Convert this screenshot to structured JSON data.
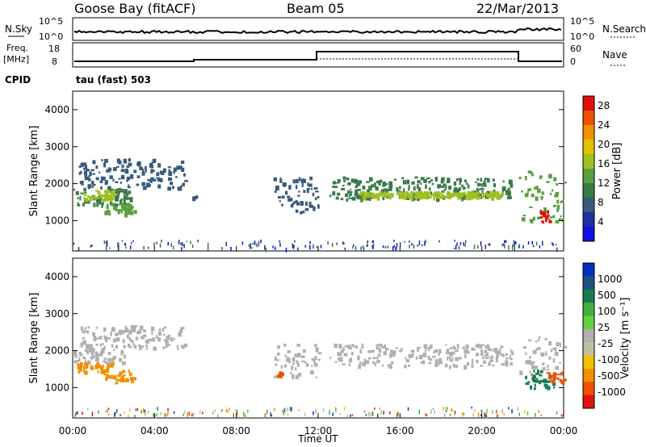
{
  "header": {
    "station": "Goose Bay (fitACF)",
    "beam": "Beam 05",
    "date": "22/Mar/2013"
  },
  "sky_panel": {
    "left_label": "N.Sky",
    "right_label": "N.Search",
    "left_ticks": [
      "10^5",
      "10^0"
    ],
    "right_ticks": [
      "10^5",
      "10^0"
    ]
  },
  "freq_panel": {
    "left_label_1": "Freq.",
    "left_label_2": "[MHz]",
    "right_label": "Nave",
    "left_ticks": [
      "18",
      "8"
    ],
    "right_ticks": [
      "60",
      "0"
    ]
  },
  "cpid": {
    "label": "CPID",
    "program": "tau (fast) 503"
  },
  "colors": {
    "power_scale": [
      "#1010e0",
      "#2030a0",
      "#3a5a7a",
      "#3a7a4a",
      "#5aa040",
      "#a0c020",
      "#e0c000",
      "#f09000",
      "#f05000",
      "#e01010"
    ],
    "velocity_scale": [
      "#0030c0",
      "#205080",
      "#1a7a50",
      "#40b040",
      "#60d040",
      "#b0b0b0",
      "#c0c0a0",
      "#f0c000",
      "#f09000",
      "#f05000",
      "#e01010"
    ]
  },
  "chart_data": [
    {
      "type": "heatmap",
      "panel": "power",
      "ylabel": "Slant Range [km]",
      "xlabel": "Time UT",
      "x_ticks": [
        "00:00",
        "04:00",
        "08:00",
        "12:00",
        "16:00",
        "20:00",
        "00:00"
      ],
      "y_ticks": [
        1000,
        2000,
        3000,
        4000
      ],
      "xlim_hours": [
        0,
        24
      ],
      "ylim_km": [
        180,
        4500
      ],
      "colorbar_label": "Power [dB]",
      "colorbar_ticks": [
        4,
        8,
        12,
        16,
        20,
        24,
        28
      ],
      "colorbar_range": [
        0,
        30
      ],
      "regions": [
        {
          "t0": 0.0,
          "t1": 2.8,
          "r0": 1450,
          "r1": 1900,
          "power": 10
        },
        {
          "t0": 0.5,
          "t1": 2.0,
          "r0": 1600,
          "r1": 1850,
          "power": 16
        },
        {
          "t0": 1.5,
          "t1": 3.0,
          "r0": 1200,
          "r1": 1500,
          "power": 14
        },
        {
          "t0": 0.3,
          "t1": 5.5,
          "r0": 1900,
          "r1": 2700,
          "power": 6
        },
        {
          "t0": 5.8,
          "t1": 6.0,
          "r0": 1550,
          "r1": 1750,
          "power": 6
        },
        {
          "t0": 9.8,
          "t1": 12.0,
          "r0": 1250,
          "r1": 2200,
          "power": 6
        },
        {
          "t0": 12.5,
          "t1": 21.5,
          "r0": 1600,
          "r1": 2200,
          "power": 9
        },
        {
          "t0": 14.0,
          "t1": 21.0,
          "r0": 1650,
          "r1": 1800,
          "power": 17
        },
        {
          "t0": 21.8,
          "t1": 24.0,
          "r0": 1000,
          "r1": 2400,
          "power": 12
        },
        {
          "t0": 22.8,
          "t1": 23.3,
          "r0": 1000,
          "r1": 1300,
          "power": 28
        }
      ]
    },
    {
      "type": "heatmap",
      "panel": "velocity",
      "ylabel": "Slant Range [km]",
      "xlabel": "Time UT",
      "x_ticks": [
        "00:00",
        "04:00",
        "08:00",
        "12:00",
        "16:00",
        "20:00",
        "00:00"
      ],
      "y_ticks": [
        1000,
        2000,
        3000,
        4000
      ],
      "xlim_hours": [
        0,
        24
      ],
      "ylim_km": [
        180,
        4500
      ],
      "colorbar_label": "Velocity [m s⁻¹]",
      "colorbar_ticks": [
        "1000",
        "500",
        "100",
        "25",
        "-25",
        "-100",
        "-500",
        "-1000"
      ],
      "regions": [
        {
          "t0": 0.0,
          "t1": 2.5,
          "r0": 1700,
          "r1": 2100,
          "velocity": 0
        },
        {
          "t0": 0.2,
          "t1": 2.0,
          "r0": 1450,
          "r1": 1700,
          "velocity": -100
        },
        {
          "t0": 1.5,
          "t1": 3.0,
          "r0": 1150,
          "r1": 1500,
          "velocity": -150
        },
        {
          "t0": 0.3,
          "t1": 5.5,
          "r0": 2100,
          "r1": 2700,
          "velocity": 0
        },
        {
          "t0": 9.8,
          "t1": 12.0,
          "r0": 1300,
          "r1": 2200,
          "velocity": 0
        },
        {
          "t0": 9.9,
          "t1": 10.2,
          "r0": 1300,
          "r1": 1450,
          "velocity": -500
        },
        {
          "t0": 12.5,
          "t1": 21.5,
          "r0": 1600,
          "r1": 2200,
          "velocity": 0
        },
        {
          "t0": 21.8,
          "t1": 24.0,
          "r0": 1200,
          "r1": 2400,
          "velocity": 0
        },
        {
          "t0": 22.0,
          "t1": 23.5,
          "r0": 1000,
          "r1": 1500,
          "velocity": 100
        },
        {
          "t0": 23.2,
          "t1": 24.0,
          "r0": 1200,
          "r1": 1450,
          "velocity": -500
        }
      ]
    }
  ],
  "footer": {
    "xlabel": "Time UT"
  }
}
